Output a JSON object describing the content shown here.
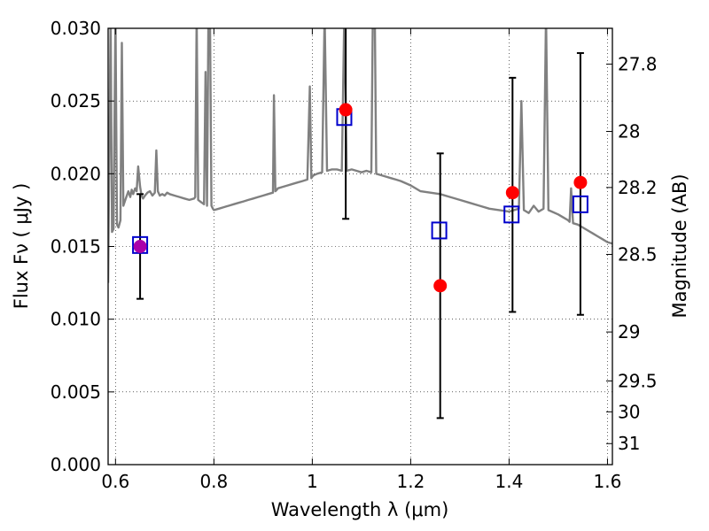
{
  "chart_data": {
    "type": "scatter",
    "xlabel": "Wavelength  λ (μm)",
    "ylabel": "Flux  Fν  ( μJy )",
    "ylabel_right": "Magnitude (AB)",
    "xlim": [
      0.585,
      1.61
    ],
    "ylim": [
      0.0,
      0.03
    ],
    "grid": true,
    "x_ticks": [
      0.6,
      0.8,
      1.0,
      1.2,
      1.4,
      1.6
    ],
    "x_tick_labels": [
      "0.6",
      "0.8",
      "1",
      "1.2",
      "1.4",
      "1.6"
    ],
    "y_ticks": [
      0.0,
      0.005,
      0.01,
      0.015,
      0.02,
      0.025,
      0.03
    ],
    "y_tick_labels": [
      "0.000",
      "0.005",
      "0.010",
      "0.015",
      "0.020",
      "0.025",
      "0.030"
    ],
    "right_ticks": [
      {
        "mag": 27.8,
        "label": "27.8"
      },
      {
        "mag": 28.0,
        "label": "28"
      },
      {
        "mag": 28.2,
        "label": "28.2"
      },
      {
        "mag": 28.5,
        "label": "28.5"
      },
      {
        "mag": 29.0,
        "label": "29"
      },
      {
        "mag": 29.5,
        "label": "29.5"
      },
      {
        "mag": 30.0,
        "label": "30"
      },
      {
        "mag": 31.0,
        "label": "31"
      }
    ],
    "series": [
      {
        "kind": "line",
        "color": "#808080",
        "x": [
          0.585,
          0.59,
          0.593,
          0.596,
          0.6,
          0.603,
          0.606,
          0.61,
          0.613,
          0.616,
          0.62,
          0.623,
          0.626,
          0.63,
          0.633,
          0.636,
          0.64,
          0.643,
          0.646,
          0.65,
          0.653,
          0.656,
          0.66,
          0.665,
          0.67,
          0.675,
          0.68,
          0.683,
          0.686,
          0.69,
          0.695,
          0.7,
          0.705,
          0.71,
          0.72,
          0.73,
          0.74,
          0.75,
          0.76,
          0.762,
          0.765,
          0.768,
          0.772,
          0.776,
          0.78,
          0.783,
          0.786,
          0.789,
          0.792,
          0.795,
          0.798,
          0.8,
          0.81,
          0.82,
          0.83,
          0.84,
          0.85,
          0.86,
          0.87,
          0.88,
          0.89,
          0.9,
          0.91,
          0.92,
          0.922,
          0.925,
          0.928,
          0.93,
          0.94,
          0.95,
          0.96,
          0.97,
          0.98,
          0.99,
          0.995,
          0.998,
          1.0,
          1.003,
          1.01,
          1.02,
          1.025,
          1.03,
          1.04,
          1.05,
          1.06,
          1.065,
          1.07,
          1.08,
          1.09,
          1.1,
          1.11,
          1.12,
          1.123,
          1.127,
          1.13,
          1.14,
          1.15,
          1.16,
          1.17,
          1.18,
          1.2,
          1.22,
          1.24,
          1.26,
          1.28,
          1.3,
          1.32,
          1.34,
          1.36,
          1.38,
          1.4,
          1.42,
          1.425,
          1.43,
          1.44,
          1.45,
          1.46,
          1.47,
          1.475,
          1.48,
          1.5,
          1.52,
          1.523,
          1.526,
          1.53,
          1.54,
          1.55,
          1.56,
          1.57,
          1.58,
          1.59,
          1.6,
          1.61
        ],
        "y": [
          0.0125,
          0.031,
          0.016,
          0.0162,
          0.031,
          0.0165,
          0.0163,
          0.0168,
          0.029,
          0.0178,
          0.0182,
          0.0185,
          0.0188,
          0.0184,
          0.0189,
          0.0186,
          0.019,
          0.0188,
          0.0205,
          0.0191,
          0.0185,
          0.0183,
          0.0185,
          0.0187,
          0.0188,
          0.0185,
          0.0187,
          0.0216,
          0.0188,
          0.0185,
          0.0186,
          0.0185,
          0.0187,
          0.0186,
          0.0185,
          0.0184,
          0.0183,
          0.0182,
          0.0183,
          0.0184,
          0.031,
          0.0182,
          0.0181,
          0.018,
          0.0179,
          0.027,
          0.0178,
          0.031,
          0.031,
          0.0178,
          0.0176,
          0.0175,
          0.0176,
          0.0177,
          0.0178,
          0.0179,
          0.018,
          0.0181,
          0.0182,
          0.0183,
          0.0184,
          0.0185,
          0.0186,
          0.0187,
          0.0254,
          0.0188,
          0.0189,
          0.019,
          0.0191,
          0.0192,
          0.0193,
          0.0194,
          0.0195,
          0.0196,
          0.026,
          0.0197,
          0.0198,
          0.0199,
          0.02,
          0.0201,
          0.031,
          0.0202,
          0.0203,
          0.0203,
          0.0202,
          0.031,
          0.0202,
          0.0203,
          0.0202,
          0.0201,
          0.0202,
          0.0201,
          0.031,
          0.031,
          0.02,
          0.0199,
          0.0198,
          0.0197,
          0.0196,
          0.0195,
          0.0192,
          0.0188,
          0.0187,
          0.0186,
          0.0184,
          0.0182,
          0.018,
          0.0178,
          0.0176,
          0.0175,
          0.0174,
          0.0176,
          0.025,
          0.0175,
          0.0173,
          0.0178,
          0.0174,
          0.0176,
          0.031,
          0.0175,
          0.0172,
          0.0168,
          0.0167,
          0.019,
          0.0166,
          0.0165,
          0.0163,
          0.0161,
          0.0159,
          0.0157,
          0.0155,
          0.0153,
          0.0152
        ]
      },
      {
        "kind": "open-squares",
        "color": "#0000cc",
        "x": [
          0.65,
          1.065,
          1.258,
          1.405,
          1.545
        ],
        "y": [
          0.0151,
          0.0239,
          0.0161,
          0.0172,
          0.0179
        ]
      },
      {
        "kind": "filled-circles",
        "color": "#ff0000",
        "color_first": "#aa00aa",
        "x": [
          0.65,
          1.068,
          1.26,
          1.407,
          1.545
        ],
        "y": [
          0.015,
          0.0244,
          0.0123,
          0.0187,
          0.0194
        ]
      },
      {
        "kind": "error-bars",
        "color": "#000000",
        "x": [
          0.65,
          1.068,
          1.26,
          1.407,
          1.545
        ],
        "y_low": [
          0.0114,
          0.0169,
          0.0032,
          0.0105,
          0.0103
        ],
        "y_high": [
          0.0186,
          0.031,
          0.0214,
          0.0266,
          0.0283
        ]
      }
    ]
  }
}
